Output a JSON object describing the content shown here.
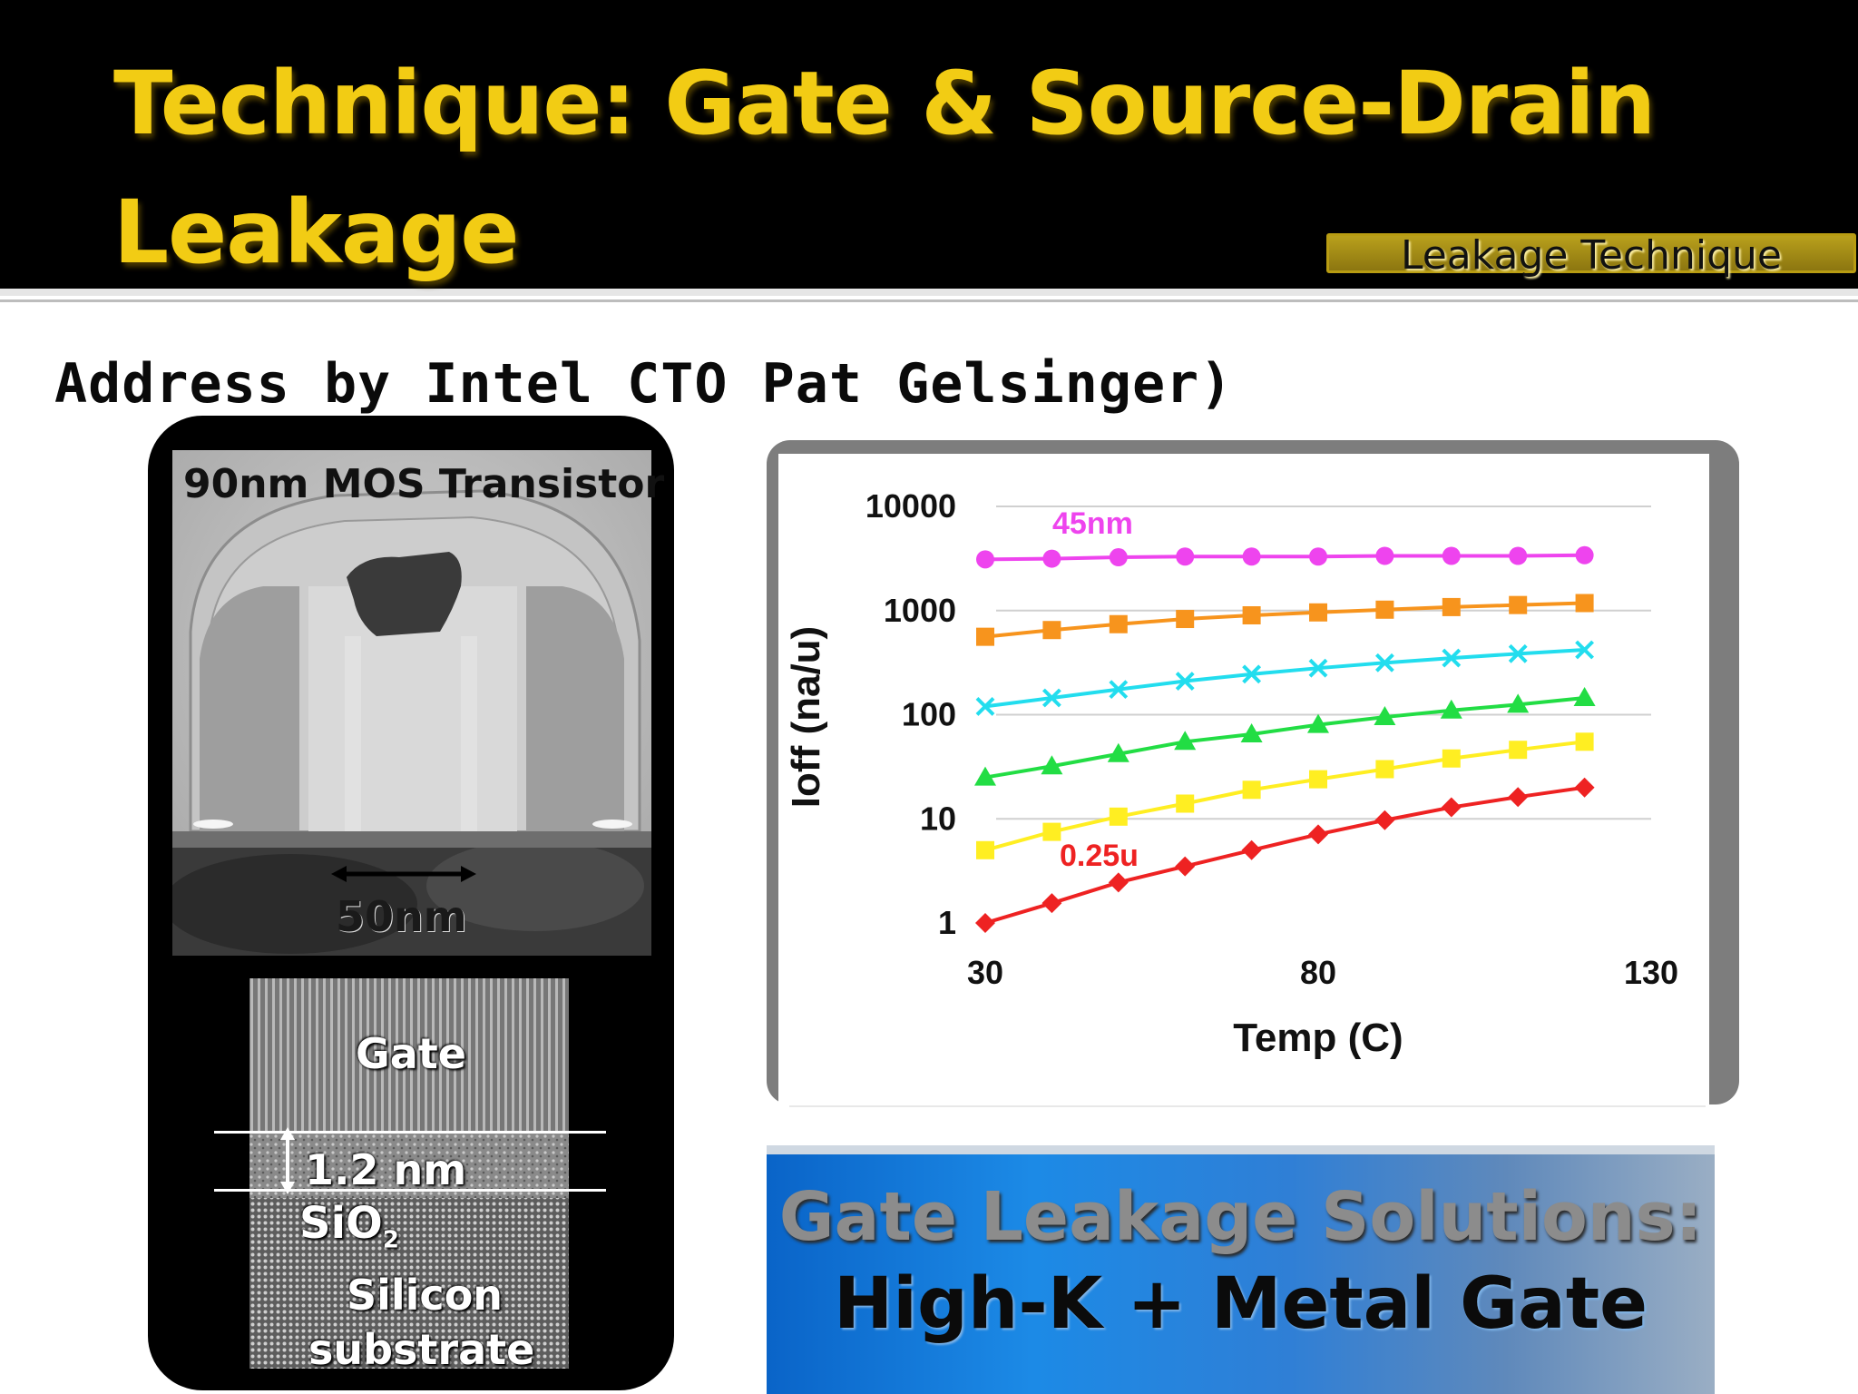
{
  "slide": {
    "title_line1": "Technique: Gate & Source-Drain",
    "title_line2": "Leakage",
    "section_tag": "Leakage Technique",
    "subtitle": "Address by Intel CTO Pat Gelsinger)"
  },
  "left_panel": {
    "tem_image_label": "90nm MOS Transistor",
    "tem_scale_label": "50nm",
    "oxide_image": {
      "gate_label": "Gate",
      "thickness_label": "1.2 nm",
      "oxide_label": "SiO",
      "oxide_subscript": "2",
      "silicon_label_line1": "Silicon",
      "silicon_label_line2": "substrate"
    }
  },
  "banner": {
    "line1": "Gate Leakage Solutions:",
    "line2": "High-K + Metal Gate"
  },
  "chart_data": {
    "type": "line",
    "xlabel": "Temp (C)",
    "ylabel": "Ioff (na/u)",
    "xlim": [
      30,
      130
    ],
    "ylim": [
      1,
      10000
    ],
    "y_scale": "log",
    "x_ticks": [
      "30",
      "80",
      "130"
    ],
    "y_ticks": [
      "1",
      "10",
      "100",
      "1000",
      "10000"
    ],
    "grid": true,
    "annotations": [
      "45nm",
      "0.25u"
    ],
    "x": [
      30,
      40,
      50,
      60,
      70,
      80,
      90,
      100,
      110,
      120
    ],
    "series": [
      {
        "name": "45nm",
        "color": "#ee44ee",
        "marker": "circle",
        "values": [
          3100,
          3150,
          3250,
          3300,
          3300,
          3300,
          3350,
          3350,
          3350,
          3400
        ]
      },
      {
        "name": "",
        "color": "#f7941d",
        "marker": "square",
        "values": [
          560,
          650,
          740,
          830,
          900,
          960,
          1020,
          1080,
          1130,
          1180
        ]
      },
      {
        "name": "",
        "color": "#22ddee",
        "marker": "x",
        "values": [
          120,
          145,
          175,
          210,
          245,
          280,
          315,
          350,
          385,
          420
        ]
      },
      {
        "name": "",
        "color": "#22dd44",
        "marker": "triangle",
        "values": [
          25,
          32,
          42,
          55,
          65,
          80,
          95,
          110,
          125,
          145
        ]
      },
      {
        "name": "",
        "color": "#ffee22",
        "marker": "square",
        "values": [
          5,
          7.5,
          10.5,
          14,
          19,
          24,
          30,
          38,
          46,
          55
        ]
      },
      {
        "name": "0.25u",
        "color": "#ee2222",
        "marker": "diamond",
        "values": [
          1,
          1.55,
          2.45,
          3.5,
          5,
          7.1,
          9.7,
          12.9,
          16.2,
          20
        ]
      }
    ]
  }
}
